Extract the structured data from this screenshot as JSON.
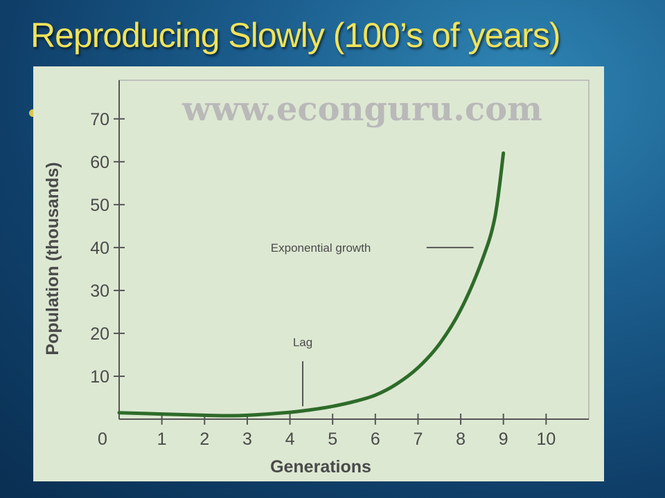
{
  "slide": {
    "title": "Reproducing Slowly (100’s of years)",
    "title_color": "#f1e35a",
    "background_color": "#1c5f8f"
  },
  "chart_data": {
    "type": "line",
    "watermark": "www.econguru.com",
    "xlabel": "Generations",
    "ylabel": "Population (thousands)",
    "x_ticks": [
      "0",
      "1",
      "2",
      "3",
      "4",
      "5",
      "6",
      "7",
      "8",
      "9",
      "10"
    ],
    "y_ticks": [
      "10",
      "20",
      "30",
      "40",
      "50",
      "60",
      "70"
    ],
    "xlim": [
      0,
      11
    ],
    "ylim": [
      0,
      79
    ],
    "grid": false,
    "line_color": "#2e6b2a",
    "series": [
      {
        "x": [
          0,
          1,
          2,
          2.5,
          3,
          4,
          4.5,
          5,
          5.5,
          6,
          6.5,
          7,
          7.5,
          8,
          8.5,
          8.8,
          9
        ],
        "y": [
          1.5,
          1.2,
          0.9,
          0.8,
          0.9,
          1.6,
          2.2,
          3.0,
          4.1,
          5.6,
          8.2,
          12.0,
          17.5,
          25.5,
          37.0,
          47.0,
          62.0
        ]
      }
    ],
    "annotations": [
      {
        "text": "Exponential growth",
        "x": 8.3,
        "y": 40
      },
      {
        "text": "Lag",
        "x": 4.3,
        "y": 3
      }
    ]
  }
}
